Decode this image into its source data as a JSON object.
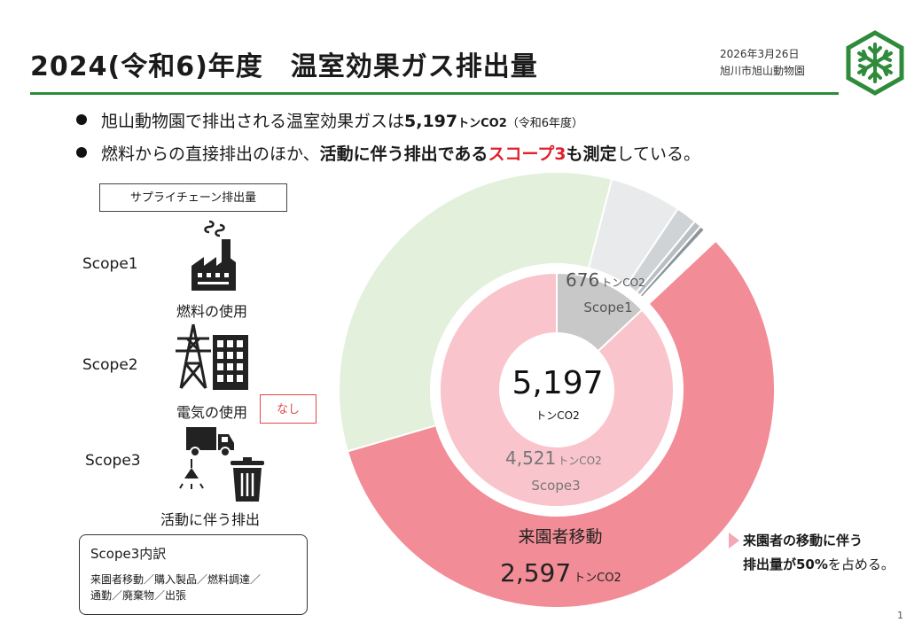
{
  "header": {
    "title": "2024(令和6)年度　温室効果ガス排出量",
    "date": "2026年3月26日",
    "org": "旭川市旭山動物園"
  },
  "bullets": {
    "b1_pre": "旭山動物園で排出される温室効果ガスは",
    "b1_value": "5,197",
    "b1_unit": "トンCO2",
    "b1_year": "（令和6年度）",
    "b2_pre": "燃料からの直接排出のほか、",
    "b2_bold": "活動に伴う排出である",
    "b2_red": "スコープ3",
    "b2_bold2": "も測定",
    "b2_post": "している。"
  },
  "supply_chain_label": "サプライチェーン排出量",
  "scopes": [
    {
      "label": "Scope1",
      "icon": "factory-icon",
      "caption": "燃料の使用"
    },
    {
      "label": "Scope2",
      "icon": "power-building-icon",
      "caption": "電気の使用",
      "badge": "なし"
    },
    {
      "label": "Scope3",
      "icon": "truck-light-trash-icon",
      "caption": "活動に伴う排出"
    }
  ],
  "breakdown": {
    "title": "Scope3内訳",
    "line1": "来園者移動／購入製品／燃料調達／",
    "line2": "通勤／廃棄物／出張"
  },
  "note": {
    "line1": "来園者の移動に伴う",
    "line2_bold": "排出量が50%",
    "line2_post": "を占める。"
  },
  "page_number": "1",
  "colors": {
    "accent_green": "#2e8b3a",
    "red": "#e0202a",
    "scope1": "#c8c8c8",
    "scope3_inner": "#f9c4cb",
    "visitor": "#f28c96",
    "outer_green": "#e2f0dc",
    "outer_gray": "#e8eaec",
    "outer_gray2": "#cfd3d6"
  },
  "chart_data": {
    "type": "pie",
    "total": {
      "value": "5,197",
      "unit": "トンCO2"
    },
    "inner": [
      {
        "name": "Scope1",
        "value": 676,
        "value_label": "676",
        "unit": "トンCO2"
      },
      {
        "name": "Scope3",
        "value": 4521,
        "value_label": "4,521",
        "unit": "トンCO2"
      }
    ],
    "outer": [
      {
        "name": "来園者移動",
        "value": 2597,
        "value_label": "2,597",
        "unit": "トンCO2"
      },
      {
        "name": "",
        "value": 1520
      },
      {
        "name": "",
        "value": 240
      },
      {
        "name": "",
        "value": 70
      },
      {
        "name": "",
        "value": 25
      },
      {
        "name": "",
        "value": 18
      },
      {
        "name": "",
        "value": 51
      }
    ]
  }
}
